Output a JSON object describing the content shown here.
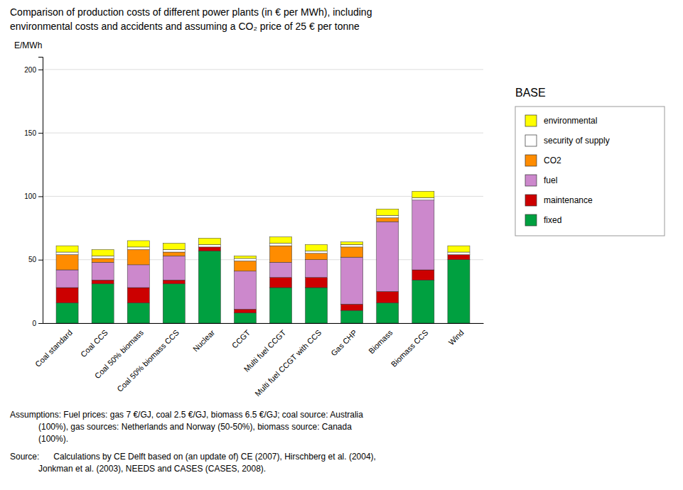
{
  "chart_data": {
    "type": "bar",
    "stacked": true,
    "title": "Comparison of production costs of different power plants (in € per MWh), including",
    "subtitle": "environmental costs and accidents and assuming a CO₂ price of 25 € per tonne",
    "ylabel": "E/MWh",
    "categories": [
      "Coal standard",
      "Coal CCS",
      "Coal 50% biomass",
      "Coal 50% biomass CCS",
      "Nuclear",
      "CCGT",
      "Multi fuel CCGT",
      "Multi fuel CCGT with CCS",
      "Gas CHP",
      "Biomass",
      "Biomass CCS",
      "Wind"
    ],
    "series": [
      {
        "name": "fixed",
        "color": "#00a040",
        "values": [
          16,
          31,
          16,
          31,
          57,
          8,
          28,
          28,
          10,
          16,
          34,
          50
        ]
      },
      {
        "name": "maintenance",
        "color": "#cc0000",
        "values": [
          12,
          3,
          12,
          3,
          3,
          3,
          8,
          8,
          5,
          9,
          8,
          4
        ]
      },
      {
        "name": "fuel",
        "color": "#cc88cc",
        "values": [
          14,
          14,
          18,
          19,
          0,
          30,
          12,
          14,
          37,
          55,
          55,
          0
        ]
      },
      {
        "name": "CO2",
        "color": "#ff8c00",
        "values": [
          12,
          3,
          12,
          3,
          0,
          8,
          13,
          5,
          8,
          3,
          0,
          0
        ]
      },
      {
        "name": "security of supply",
        "color": "#ffffff",
        "values": [
          2,
          2,
          2,
          2,
          2,
          2,
          2,
          2,
          2,
          2,
          2,
          2
        ]
      },
      {
        "name": "environmental",
        "color": "#ffff00",
        "values": [
          5,
          5,
          5,
          5,
          5,
          2,
          5,
          5,
          2,
          5,
          5,
          5
        ]
      }
    ],
    "ylim": [
      0,
      210
    ],
    "yticks": [
      0,
      50,
      100,
      150,
      200
    ],
    "grid": true,
    "legend": "right",
    "annotations": [
      "BASE",
      "Assumptions: Fuel prices: gas 7 €/GJ, coal 2.5 €/GJ, biomass 6.5 €/GJ; coal source: Australia",
      "            (100%), gas sources: Netherlands and Norway (50-50%), biomass source: Canada",
      "            (100%).",
      "Source:      Calculations by CE Delft based on (an update of) CE (2007), Hirschberg et al. (2004),",
      "            Jonkman et al. (2003), NEEDS and CASES (CASES, 2008)."
    ]
  }
}
